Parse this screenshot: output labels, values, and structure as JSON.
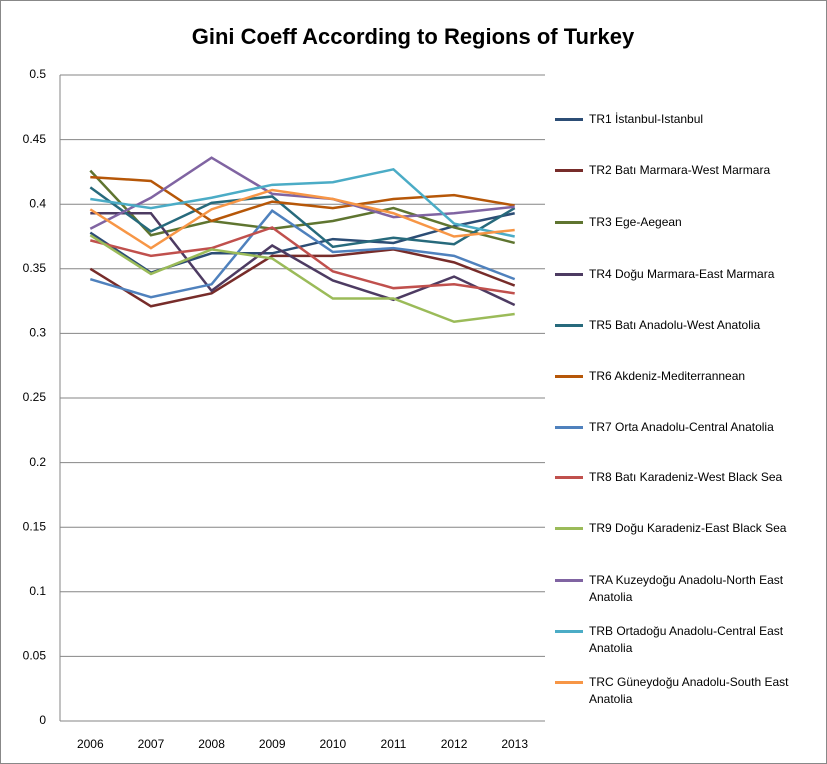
{
  "chart_data": {
    "type": "line",
    "title": "Gini Coeff According to Regions of Turkey",
    "categories": [
      "2006",
      "2007",
      "2008",
      "2009",
      "2010",
      "2011",
      "2012",
      "2013"
    ],
    "ylim": [
      0,
      0.5
    ],
    "yticks": [
      0,
      0.05,
      0.1,
      0.15,
      0.2,
      0.25,
      0.3,
      0.35,
      0.4,
      0.45,
      0.5
    ],
    "grid": true,
    "legend": "right",
    "series": [
      {
        "name": "TR1 İstanbul-Istanbul",
        "color": "#2c4d75",
        "values": [
          0.378,
          0.347,
          0.362,
          0.362,
          0.373,
          0.37,
          0.383,
          0.393
        ]
      },
      {
        "name": "TR2 Batı Marmara-West Marmara",
        "color": "#772c2a",
        "values": [
          0.35,
          0.321,
          0.331,
          0.36,
          0.36,
          0.365,
          0.355,
          0.337
        ]
      },
      {
        "name": "TR3 Ege-Aegean",
        "color": "#5f7530",
        "values": [
          0.426,
          0.376,
          0.387,
          0.381,
          0.387,
          0.397,
          0.382,
          0.37
        ]
      },
      {
        "name": "TR4 Doğu Marmara-East Marmara",
        "color": "#4d3b62",
        "values": [
          0.393,
          0.393,
          0.333,
          0.368,
          0.341,
          0.326,
          0.344,
          0.322
        ]
      },
      {
        "name": "TR5 Batı Anadolu-West Anatolia",
        "color": "#276a7c",
        "values": [
          0.413,
          0.379,
          0.401,
          0.406,
          0.367,
          0.374,
          0.369,
          0.397
        ]
      },
      {
        "name": "TR6 Akdeniz-Mediterrannean",
        "color": "#b65708",
        "values": [
          0.421,
          0.418,
          0.387,
          0.402,
          0.397,
          0.404,
          0.407,
          0.399
        ]
      },
      {
        "name": "TR7 Orta Anadolu-Central Anatolia",
        "color": "#4f81bd",
        "values": [
          0.342,
          0.328,
          0.338,
          0.395,
          0.363,
          0.366,
          0.36,
          0.342
        ]
      },
      {
        "name": "TR8 Batı Karadeniz-West Black Sea",
        "color": "#c0504d",
        "values": [
          0.372,
          0.36,
          0.366,
          0.382,
          0.348,
          0.335,
          0.338,
          0.331
        ]
      },
      {
        "name": "TR9 Doğu Karadeniz-East Black Sea",
        "color": "#9bbb59",
        "values": [
          0.376,
          0.346,
          0.365,
          0.358,
          0.327,
          0.327,
          0.309,
          0.315
        ]
      },
      {
        "name": "TRA Kuzeydoğu Anadolu-North East Anatolia",
        "color": "#8064a2",
        "values": [
          0.381,
          0.405,
          0.436,
          0.408,
          0.404,
          0.39,
          0.393,
          0.398
        ]
      },
      {
        "name": "TRB Ortadoğu Anadolu-Central East Anatolia",
        "color": "#4bacc6",
        "values": [
          0.404,
          0.397,
          0.405,
          0.415,
          0.417,
          0.427,
          0.385,
          0.375
        ]
      },
      {
        "name": "TRC Güneydoğu Anadolu-South East Anatolia",
        "color": "#f79646",
        "values": [
          0.396,
          0.366,
          0.396,
          0.411,
          0.404,
          0.393,
          0.375,
          0.38
        ]
      }
    ]
  }
}
